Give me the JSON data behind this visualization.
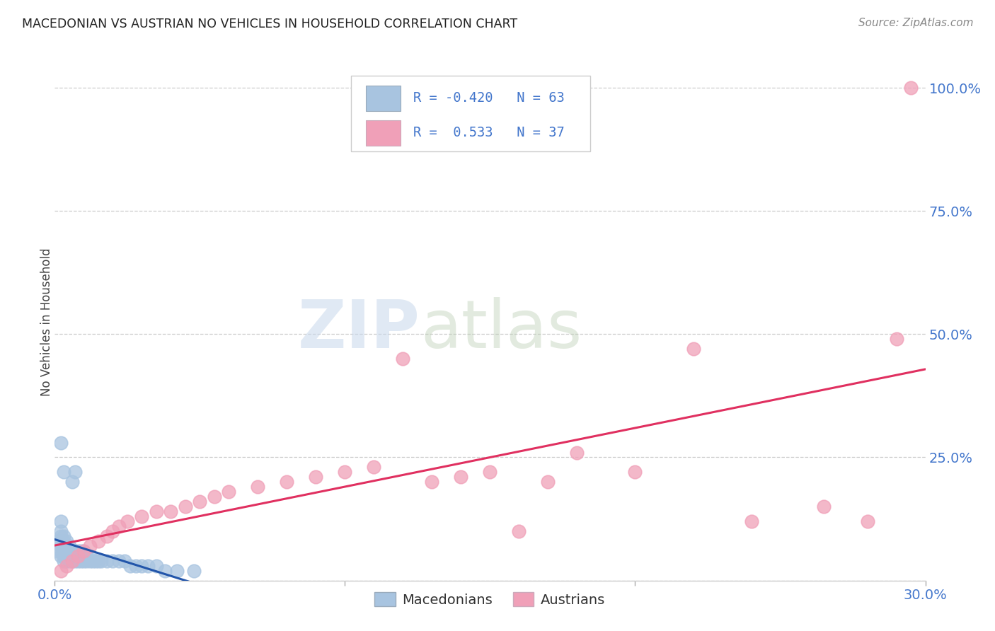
{
  "title": "MACEDONIAN VS AUSTRIAN NO VEHICLES IN HOUSEHOLD CORRELATION CHART",
  "source": "Source: ZipAtlas.com",
  "ylabel": "No Vehicles in Household",
  "xlim": [
    0.0,
    0.3
  ],
  "ylim": [
    0.0,
    1.05
  ],
  "background_color": "#ffffff",
  "grid_color": "#cccccc",
  "macedonian_color": "#a8c4e0",
  "austrian_color": "#f0a0b8",
  "macedonian_line_color": "#2255aa",
  "austrian_line_color": "#e03060",
  "legend_text_color": "#4477cc",
  "tick_color": "#4477cc",
  "R_macedonian": -0.42,
  "N_macedonian": 63,
  "R_austrian": 0.533,
  "N_austrian": 37,
  "mac_x": [
    0.001,
    0.001,
    0.002,
    0.002,
    0.002,
    0.002,
    0.002,
    0.002,
    0.002,
    0.002,
    0.003,
    0.003,
    0.003,
    0.003,
    0.003,
    0.003,
    0.003,
    0.004,
    0.004,
    0.004,
    0.004,
    0.004,
    0.005,
    0.005,
    0.005,
    0.005,
    0.006,
    0.006,
    0.006,
    0.006,
    0.007,
    0.007,
    0.007,
    0.007,
    0.008,
    0.008,
    0.008,
    0.009,
    0.009,
    0.009,
    0.01,
    0.01,
    0.01,
    0.011,
    0.011,
    0.012,
    0.012,
    0.013,
    0.014,
    0.015,
    0.016,
    0.018,
    0.02,
    0.022,
    0.024,
    0.026,
    0.028,
    0.03,
    0.032,
    0.035,
    0.038,
    0.042,
    0.048
  ],
  "mac_y": [
    0.06,
    0.08,
    0.05,
    0.06,
    0.07,
    0.08,
    0.09,
    0.1,
    0.12,
    0.28,
    0.04,
    0.05,
    0.06,
    0.07,
    0.08,
    0.09,
    0.22,
    0.04,
    0.05,
    0.06,
    0.07,
    0.08,
    0.04,
    0.05,
    0.06,
    0.07,
    0.04,
    0.05,
    0.06,
    0.2,
    0.04,
    0.05,
    0.06,
    0.22,
    0.04,
    0.05,
    0.06,
    0.04,
    0.05,
    0.06,
    0.04,
    0.05,
    0.06,
    0.04,
    0.05,
    0.04,
    0.05,
    0.04,
    0.04,
    0.04,
    0.04,
    0.04,
    0.04,
    0.04,
    0.04,
    0.03,
    0.03,
    0.03,
    0.03,
    0.03,
    0.02,
    0.02,
    0.02
  ],
  "aus_x": [
    0.002,
    0.004,
    0.006,
    0.008,
    0.01,
    0.012,
    0.015,
    0.018,
    0.02,
    0.022,
    0.025,
    0.03,
    0.035,
    0.04,
    0.045,
    0.05,
    0.055,
    0.06,
    0.07,
    0.08,
    0.09,
    0.1,
    0.11,
    0.12,
    0.13,
    0.14,
    0.15,
    0.16,
    0.17,
    0.18,
    0.2,
    0.22,
    0.24,
    0.265,
    0.28,
    0.29,
    0.295
  ],
  "aus_y": [
    0.02,
    0.03,
    0.04,
    0.05,
    0.06,
    0.07,
    0.08,
    0.09,
    0.1,
    0.11,
    0.12,
    0.13,
    0.14,
    0.14,
    0.15,
    0.16,
    0.17,
    0.18,
    0.19,
    0.2,
    0.21,
    0.22,
    0.23,
    0.45,
    0.2,
    0.21,
    0.22,
    0.1,
    0.2,
    0.26,
    0.22,
    0.47,
    0.12,
    0.15,
    0.12,
    0.49,
    1.0
  ]
}
